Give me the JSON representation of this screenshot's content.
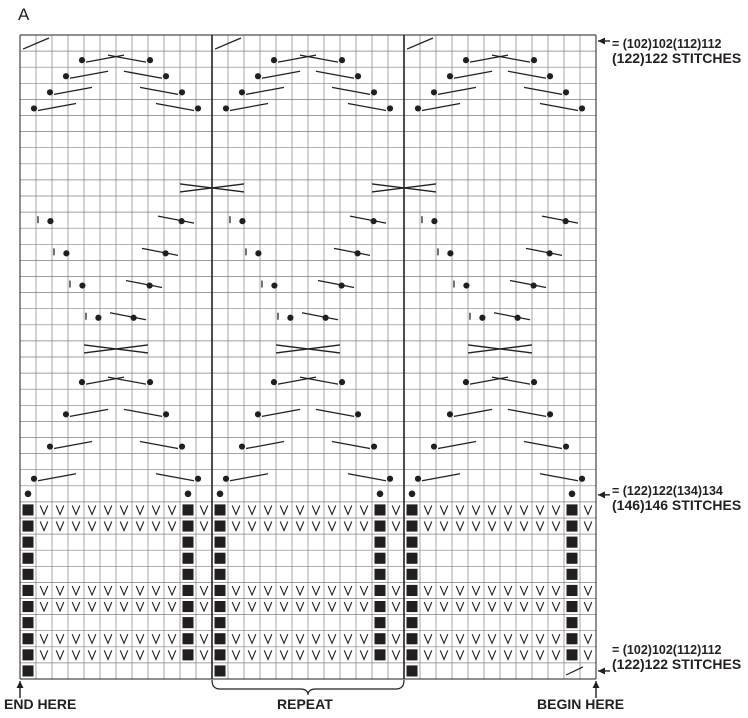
{
  "chart": {
    "title": "A",
    "grid_columns": 36,
    "grid_rows": 40,
    "repeat_columns": [
      12,
      23
    ],
    "count_top": {
      "line1": "= (102)102(112)112",
      "line2_a": "(122)122",
      "line2_b": " STITCHES"
    },
    "count_mid": {
      "line1": "= (122)122(134)134",
      "line2_a": "(146)146",
      "line2_b": " STITCHES"
    },
    "count_bot": {
      "line1": "= (102)102(112)112",
      "line2_a": "(122)122",
      "line2_b": " STITCHES"
    },
    "label_end": "END HERE",
    "label_repeat": "REPEAT",
    "label_begin": "BEGIN HERE",
    "symbols": [
      "purl-bar",
      "bobble-dot",
      "v-stitch",
      "cable-cross",
      "right-slant-decrease",
      "left-slant-decrease"
    ],
    "colors": {
      "ink": "#231f20",
      "grid": "#808080",
      "paper": "#ffffff"
    }
  }
}
